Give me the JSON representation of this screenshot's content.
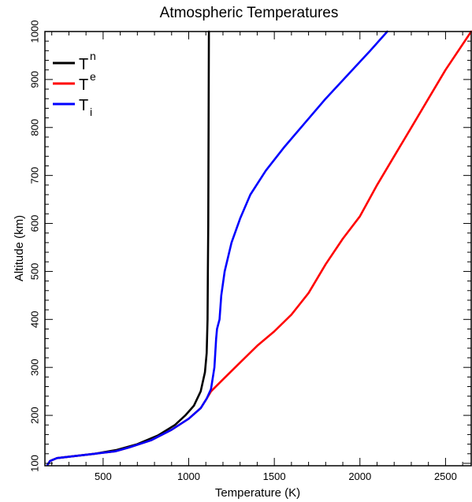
{
  "chart_data": {
    "type": "line",
    "title": "Atmospheric Temperatures",
    "xlabel": "Temperature (K)",
    "ylabel": "Altitude (km)",
    "xlim": [
      160,
      2650
    ],
    "ylim": [
      95,
      1000
    ],
    "xticks": [
      500,
      1000,
      1500,
      2000,
      2500
    ],
    "yticks": [
      100,
      200,
      300,
      400,
      500,
      600,
      700,
      800,
      900,
      1000
    ],
    "legend_position": "top-left",
    "grid": false,
    "series": [
      {
        "name": "T_n",
        "legend_base": "T",
        "legend_script": "n",
        "legend_script_pos": "super",
        "color": "#000000",
        "points": [
          [
            175,
            97
          ],
          [
            190,
            105
          ],
          [
            230,
            111
          ],
          [
            330,
            115
          ],
          [
            450,
            120
          ],
          [
            580,
            128
          ],
          [
            700,
            140
          ],
          [
            820,
            158
          ],
          [
            920,
            180
          ],
          [
            980,
            200
          ],
          [
            1030,
            220
          ],
          [
            1070,
            250
          ],
          [
            1095,
            290
          ],
          [
            1105,
            330
          ],
          [
            1110,
            400
          ],
          [
            1112,
            500
          ],
          [
            1114,
            600
          ],
          [
            1115,
            700
          ],
          [
            1116,
            800
          ],
          [
            1117,
            900
          ],
          [
            1118,
            1000
          ]
        ]
      },
      {
        "name": "T_e",
        "legend_base": "T",
        "legend_script": "e",
        "legend_script_pos": "super",
        "color": "#ff0000",
        "points": [
          [
            175,
            97
          ],
          [
            190,
            105
          ],
          [
            230,
            111
          ],
          [
            330,
            115
          ],
          [
            450,
            120
          ],
          [
            570,
            125
          ],
          [
            650,
            133
          ],
          [
            780,
            148
          ],
          [
            900,
            170
          ],
          [
            1000,
            193
          ],
          [
            1070,
            215
          ],
          [
            1105,
            235
          ],
          [
            1130,
            250
          ],
          [
            1200,
            275
          ],
          [
            1300,
            310
          ],
          [
            1400,
            345
          ],
          [
            1500,
            375
          ],
          [
            1600,
            410
          ],
          [
            1700,
            455
          ],
          [
            1800,
            515
          ],
          [
            1900,
            568
          ],
          [
            2000,
            615
          ],
          [
            2100,
            680
          ],
          [
            2200,
            740
          ],
          [
            2300,
            800
          ],
          [
            2400,
            860
          ],
          [
            2500,
            920
          ],
          [
            2650,
            1000
          ]
        ]
      },
      {
        "name": "T_i",
        "legend_base": "T",
        "legend_script": "i",
        "legend_script_pos": "sub",
        "color": "#0000ff",
        "points": [
          [
            175,
            97
          ],
          [
            190,
            105
          ],
          [
            230,
            111
          ],
          [
            330,
            115
          ],
          [
            450,
            120
          ],
          [
            570,
            125
          ],
          [
            650,
            133
          ],
          [
            780,
            148
          ],
          [
            900,
            170
          ],
          [
            1000,
            193
          ],
          [
            1070,
            215
          ],
          [
            1105,
            235
          ],
          [
            1130,
            255
          ],
          [
            1150,
            300
          ],
          [
            1160,
            360
          ],
          [
            1165,
            380
          ],
          [
            1180,
            400
          ],
          [
            1190,
            450
          ],
          [
            1210,
            500
          ],
          [
            1250,
            560
          ],
          [
            1300,
            610
          ],
          [
            1360,
            660
          ],
          [
            1450,
            710
          ],
          [
            1560,
            760
          ],
          [
            1680,
            810
          ],
          [
            1800,
            860
          ],
          [
            1930,
            910
          ],
          [
            2060,
            960
          ],
          [
            2160,
            1000
          ]
        ]
      }
    ]
  }
}
